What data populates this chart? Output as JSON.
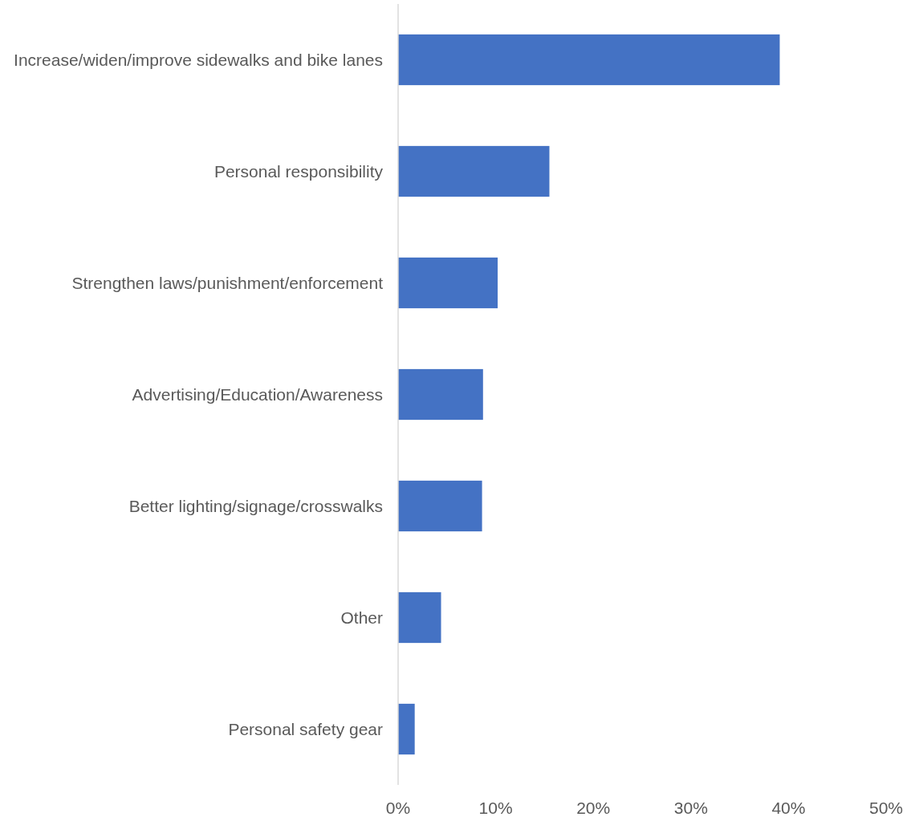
{
  "chart_data": {
    "type": "bar",
    "orientation": "horizontal",
    "categories": [
      "Increase/widen/improve sidewalks and bike lanes",
      "Personal responsibility",
      "Strengthen laws/punishment/enforcement",
      "Advertising/Education/Awareness",
      "Better lighting/signage/crosswalks",
      "Other",
      "Personal safety gear"
    ],
    "values": [
      39.1,
      15.5,
      10.2,
      8.7,
      8.6,
      4.4,
      1.7
    ],
    "color": "#4472c4",
    "xlim": [
      0,
      50
    ],
    "xticks": [
      {
        "value": 0,
        "label": "0%"
      },
      {
        "value": 10,
        "label": "10%"
      },
      {
        "value": 20,
        "label": "20%"
      },
      {
        "value": 30,
        "label": "30%"
      },
      {
        "value": 40,
        "label": "40%"
      },
      {
        "value": 50,
        "label": "50%"
      }
    ]
  }
}
